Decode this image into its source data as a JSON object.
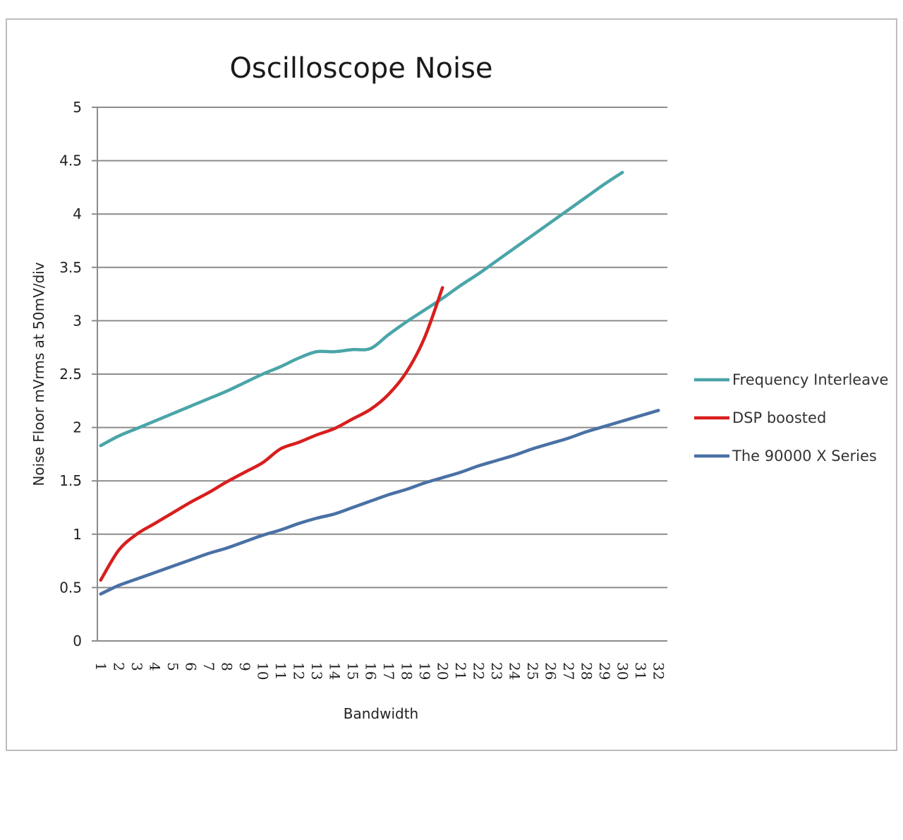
{
  "chart_data": {
    "type": "line",
    "title": "Oscilloscope Noise",
    "xlabel": "Bandwidth",
    "ylabel": "Noise Floor mVrms at 50mV/div",
    "ylim": [
      0,
      5
    ],
    "yticks": [
      "0",
      "0.5",
      "1",
      "1.5",
      "2",
      "2.5",
      "3",
      "3.5",
      "4",
      "4.5",
      "5"
    ],
    "categories": [
      "1",
      "2",
      "3",
      "4",
      "5",
      "6",
      "7",
      "8",
      "9",
      "10",
      "11",
      "12",
      "13",
      "14",
      "15",
      "16",
      "17",
      "18",
      "19",
      "20",
      "21",
      "22",
      "23",
      "24",
      "25",
      "26",
      "27",
      "28",
      "29",
      "30",
      "31",
      "32"
    ],
    "grid": true,
    "legend_position": "right",
    "series": [
      {
        "name": "Frequency Interleave",
        "color": "#4aa5a8",
        "values": [
          1.83,
          1.92,
          1.99,
          2.06,
          2.13,
          2.2,
          2.27,
          2.34,
          2.42,
          2.5,
          2.57,
          2.65,
          2.71,
          2.71,
          2.73,
          2.74,
          2.87,
          2.99,
          3.1,
          3.21,
          3.33,
          3.44,
          3.56,
          3.68,
          3.8,
          3.92,
          4.04,
          4.16,
          4.28,
          4.39,
          null,
          null
        ]
      },
      {
        "name": "DSP boosted",
        "color": "#d81e1e",
        "values": [
          0.57,
          0.85,
          1.0,
          1.1,
          1.2,
          1.3,
          1.39,
          1.49,
          1.58,
          1.67,
          1.8,
          1.86,
          1.93,
          1.99,
          2.08,
          2.17,
          2.31,
          2.52,
          2.84,
          3.31,
          null,
          null,
          null,
          null,
          null,
          null,
          null,
          null,
          null,
          null,
          null,
          null
        ]
      },
      {
        "name": "The 90000 X Series",
        "color": "#4a71a5",
        "values": [
          0.44,
          0.52,
          0.58,
          0.64,
          0.7,
          0.76,
          0.82,
          0.87,
          0.93,
          0.99,
          1.04,
          1.1,
          1.15,
          1.19,
          1.25,
          1.31,
          1.37,
          1.42,
          1.48,
          1.53,
          1.58,
          1.64,
          1.69,
          1.74,
          1.8,
          1.85,
          1.9,
          1.96,
          2.01,
          2.06,
          2.11,
          2.16
        ]
      }
    ]
  }
}
